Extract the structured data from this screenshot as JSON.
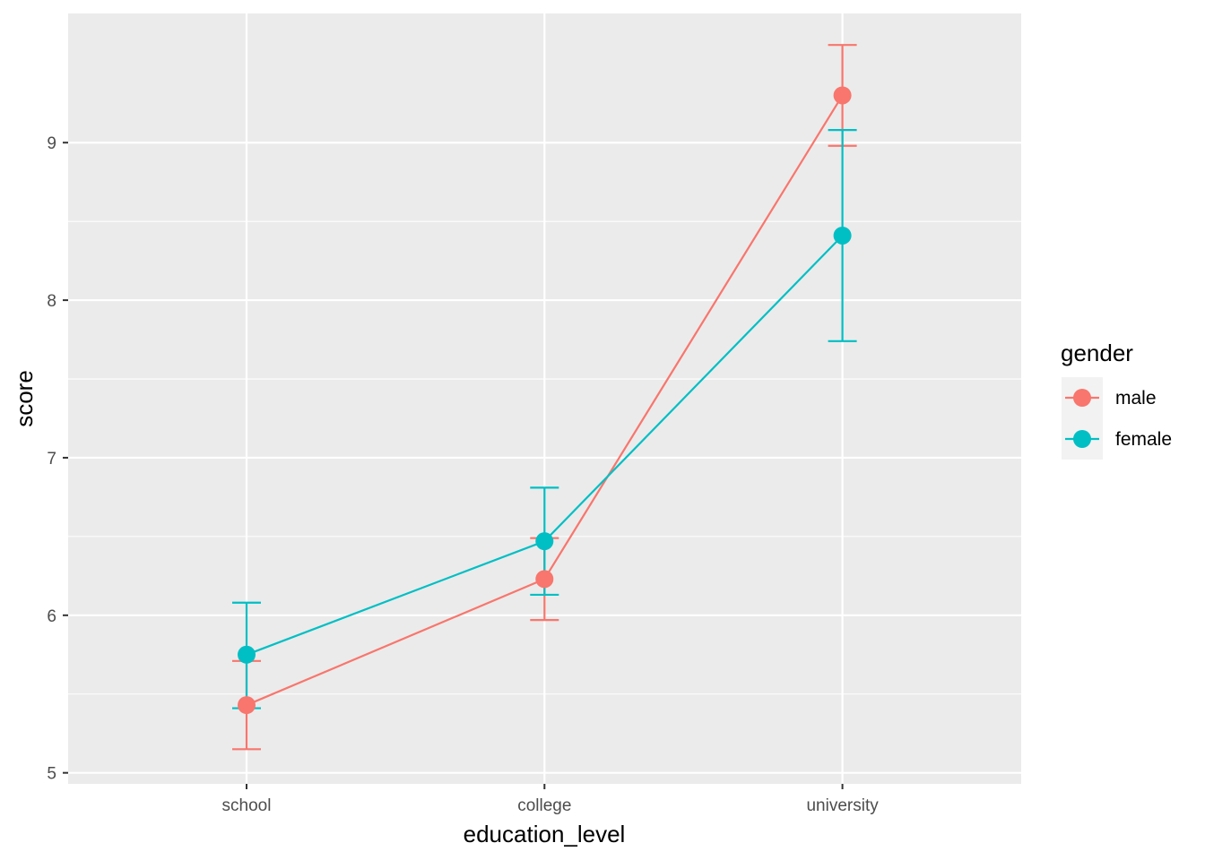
{
  "chart_data": {
    "type": "line",
    "title": "",
    "xlabel": "education_level",
    "ylabel": "score",
    "categories": [
      "school",
      "college",
      "university"
    ],
    "ylim": [
      4.93,
      9.82
    ],
    "yticks": [
      5,
      6,
      7,
      8,
      9
    ],
    "grid": true,
    "legend": {
      "title": "gender",
      "position": "right"
    },
    "series": [
      {
        "name": "male",
        "color": "#F8766D",
        "values": [
          5.43,
          6.23,
          9.3
        ],
        "err_low": [
          5.15,
          5.97,
          8.98
        ],
        "err_high": [
          5.71,
          6.49,
          9.62
        ]
      },
      {
        "name": "female",
        "color": "#00BFC4",
        "values": [
          5.75,
          6.47,
          8.41
        ],
        "err_low": [
          5.41,
          6.13,
          7.74
        ],
        "err_high": [
          6.08,
          6.81,
          9.08
        ]
      }
    ]
  }
}
